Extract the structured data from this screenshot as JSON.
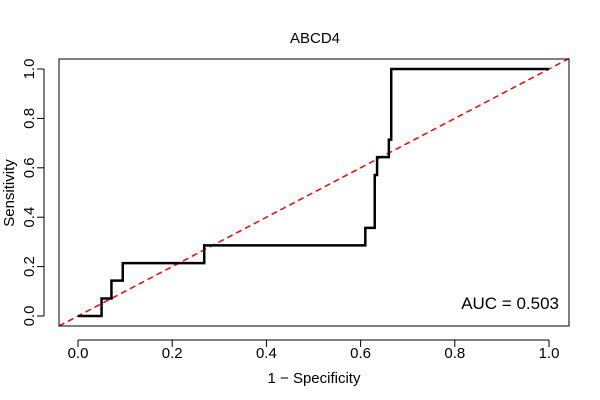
{
  "chart_data": {
    "type": "line",
    "title": "ABCD4",
    "xlabel": "1 − Specificity",
    "ylabel": "Sensitivity",
    "xlim": [
      0.0,
      1.0
    ],
    "ylim": [
      0.0,
      1.0
    ],
    "xticks": [
      "0.0",
      "0.2",
      "0.4",
      "0.6",
      "0.8",
      "1.0"
    ],
    "yticks": [
      "0.0",
      "0.2",
      "0.4",
      "0.6",
      "0.8",
      "1.0"
    ],
    "annotation": "AUC = 0.503",
    "reference_line": {
      "name": "chance",
      "color": "#ff0000",
      "x": [
        0.0,
        1.0
      ],
      "y": [
        0.0,
        1.0
      ]
    },
    "series": [
      {
        "name": "ROC",
        "color": "#000000",
        "x": [
          0.0,
          0.05,
          0.05,
          0.071,
          0.071,
          0.095,
          0.095,
          0.268,
          0.268,
          0.61,
          0.61,
          0.63,
          0.63,
          0.635,
          0.635,
          0.66,
          0.66,
          0.665,
          0.665,
          1.0
        ],
        "y": [
          0.0,
          0.0,
          0.071,
          0.071,
          0.143,
          0.143,
          0.214,
          0.214,
          0.286,
          0.286,
          0.357,
          0.357,
          0.571,
          0.571,
          0.643,
          0.643,
          0.714,
          0.714,
          1.0,
          1.0
        ]
      }
    ]
  }
}
